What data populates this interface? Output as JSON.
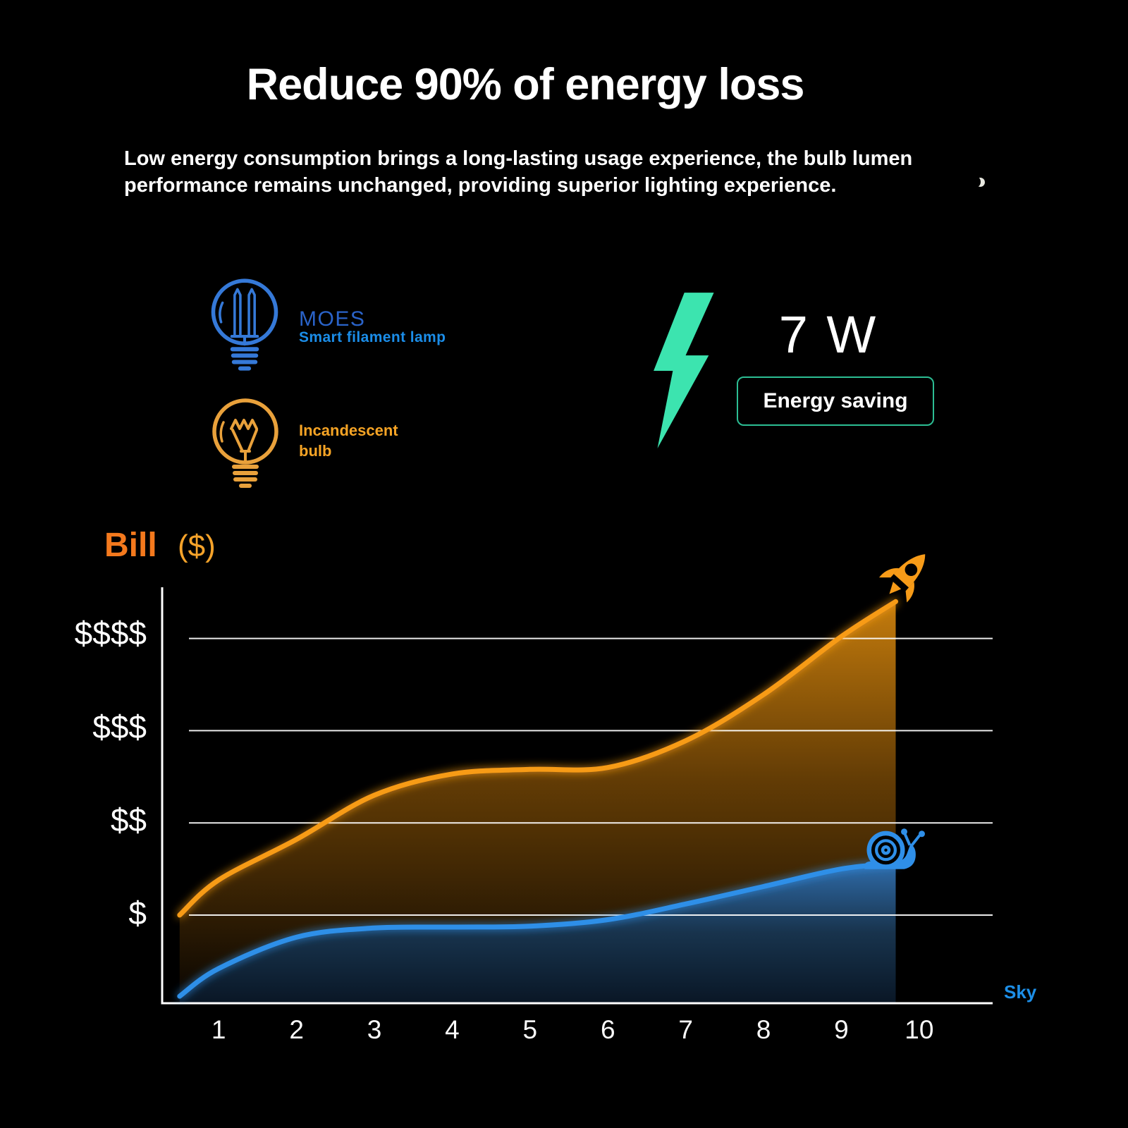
{
  "header": {
    "title": "Reduce 90% of energy loss",
    "subtitle_line1": "Low energy consumption brings a long-lasting usage experience, the bulb lumen",
    "subtitle_line2": "performance remains unchanged, providing superior lighting experience."
  },
  "comparison": {
    "smart": {
      "brand": "MOES",
      "label": "Smart filament lamp",
      "brand_color": "#2a63c9",
      "label_color": "#1b8de8",
      "icon_color": "#3579d8"
    },
    "incandescent": {
      "label_line1": "Incandescent",
      "label_line2": "bulb",
      "label_color": "#f6a425",
      "icon_color": "#e9a13b"
    }
  },
  "energy": {
    "wattage": "7 W",
    "badge_label": "Energy saving",
    "bolt_color": "#3ce4af",
    "badge_border_color": "#2cbd93"
  },
  "chart": {
    "y_axis_title": "Bill",
    "y_axis_unit": "($)",
    "y_ticks": [
      "$$$$",
      "$$$",
      "$$",
      "$"
    ],
    "x_ticks": [
      "1",
      "2",
      "3",
      "4",
      "5",
      "6",
      "7",
      "8",
      "9",
      "10"
    ],
    "x_axis_label": "Sky",
    "grid_color": "#ffffff"
  },
  "chart_data": {
    "type": "line",
    "title": "Bill ($)",
    "xlabel": "Sky",
    "ylabel": "Bill ($)",
    "x_ticks": [
      1,
      2,
      3,
      4,
      5,
      6,
      7,
      8,
      9,
      10
    ],
    "y_tick_labels_bottom_to_top": [
      "$",
      "$$",
      "$$$",
      "$$$$"
    ],
    "ylim": [
      0,
      5
    ],
    "grid": true,
    "x": [
      0.5,
      1,
      2,
      3,
      4,
      5,
      6,
      7,
      8,
      9,
      9.7
    ],
    "series": [
      {
        "name": "Incandescent bulb",
        "color": "#f79b18",
        "end_marker": "rocket",
        "values": [
          1.0,
          1.38,
          1.82,
          2.3,
          2.53,
          2.58,
          2.6,
          2.89,
          3.39,
          4.02,
          4.4
        ]
      },
      {
        "name": "MOES Smart filament lamp",
        "color": "#2f8fe8",
        "end_marker": "snail",
        "values": [
          0.12,
          0.42,
          0.76,
          0.86,
          0.87,
          0.88,
          0.95,
          1.12,
          1.31,
          1.5,
          1.56
        ]
      }
    ]
  }
}
